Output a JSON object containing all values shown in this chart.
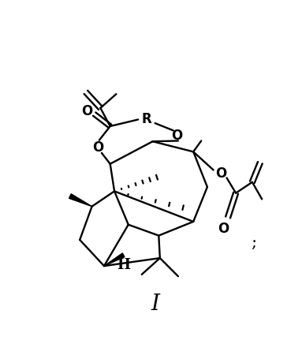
{
  "bg_color": "#ffffff",
  "figsize": [
    3.83,
    4.56
  ],
  "dpi": 100,
  "label_I": "I",
  "label_semicolon": ";",
  "label_R": "R",
  "label_O": "O",
  "label_H": "H"
}
